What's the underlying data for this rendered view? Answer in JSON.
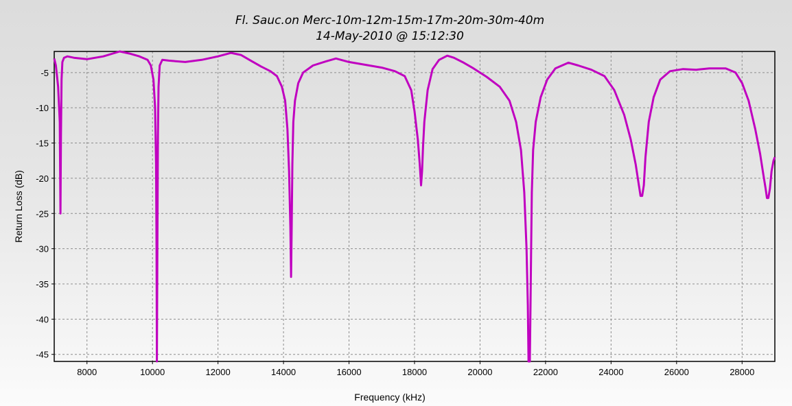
{
  "chart_data": {
    "type": "line",
    "title": "Fl. Sauc.on Merc-10m-12m-15m-17m-20m-30m-40m",
    "subtitle": "14-May-2010 @ 15:12:30",
    "xlabel": "Frequency (kHz)",
    "ylabel": "Return Loss (dB)",
    "xlim": [
      7000,
      29000
    ],
    "ylim": [
      -46,
      -2
    ],
    "xticks": [
      8000,
      10000,
      12000,
      14000,
      16000,
      18000,
      20000,
      22000,
      24000,
      26000,
      28000
    ],
    "yticks": [
      -5,
      -10,
      -15,
      -20,
      -25,
      -30,
      -35,
      -40,
      -45
    ],
    "grid": true,
    "line_color": "#c000c0",
    "series": [
      {
        "x": [
          7000,
          7050,
          7120,
          7170,
          7190,
          7205,
          7225,
          7250,
          7300,
          7400,
          7600,
          8000,
          8500,
          9000,
          9300,
          9600,
          9850,
          9950,
          10030,
          10080,
          10110,
          10125,
          10135,
          10150,
          10165,
          10185,
          10220,
          10300,
          10500,
          11000,
          11500,
          12000,
          12400,
          12700,
          13000,
          13300,
          13600,
          13800,
          13950,
          14050,
          14120,
          14170,
          14210,
          14230,
          14250,
          14270,
          14300,
          14350,
          14450,
          14600,
          14900,
          15300,
          15600,
          16000,
          16500,
          17000,
          17400,
          17700,
          17900,
          18000,
          18100,
          18160,
          18200,
          18230,
          18260,
          18300,
          18400,
          18550,
          18750,
          19000,
          19200,
          19500,
          19800,
          20200,
          20600,
          20900,
          21100,
          21250,
          21350,
          21420,
          21460,
          21480,
          21500,
          21520,
          21540,
          21560,
          21580,
          21620,
          21700,
          21850,
          22050,
          22300,
          22700,
          23000,
          23400,
          23800,
          24100,
          24400,
          24600,
          24750,
          24850,
          24900,
          24950,
          25000,
          25050,
          25150,
          25300,
          25500,
          25800,
          26200,
          26600,
          27000,
          27500,
          27800,
          28000,
          28200,
          28400,
          28550,
          28650,
          28720,
          28760,
          28800,
          28850,
          28900,
          28960,
          29000
        ],
        "y": [
          -3.0,
          -4.0,
          -7.0,
          -12.0,
          -25.0,
          -14.0,
          -6.0,
          -3.5,
          -2.9,
          -2.7,
          -2.9,
          -3.1,
          -2.7,
          -2.0,
          -2.3,
          -2.7,
          -3.2,
          -4.0,
          -6.0,
          -10.0,
          -18.0,
          -30.0,
          -46.0,
          -30.0,
          -14.0,
          -7.0,
          -4.0,
          -3.2,
          -3.3,
          -3.5,
          -3.2,
          -2.7,
          -2.2,
          -2.5,
          -3.3,
          -4.1,
          -4.8,
          -5.5,
          -7.0,
          -9.0,
          -13.0,
          -19.0,
          -27.0,
          -34.0,
          -27.0,
          -18.0,
          -12.0,
          -9.0,
          -6.5,
          -5.0,
          -4.0,
          -3.4,
          -3.0,
          -3.5,
          -3.9,
          -4.3,
          -4.8,
          -5.5,
          -7.5,
          -10.5,
          -14.5,
          -18.0,
          -21.0,
          -19.0,
          -15.5,
          -12.0,
          -7.5,
          -4.5,
          -3.2,
          -2.6,
          -2.9,
          -3.6,
          -4.4,
          -5.6,
          -7.0,
          -9.0,
          -12.0,
          -16.0,
          -22.0,
          -30.0,
          -38.0,
          -46.0,
          -46.0,
          -46.0,
          -38.0,
          -30.0,
          -22.0,
          -16.0,
          -12.0,
          -8.5,
          -6.0,
          -4.4,
          -3.6,
          -4.0,
          -4.6,
          -5.5,
          -7.5,
          -11.0,
          -14.5,
          -18.0,
          -21.0,
          -22.5,
          -22.5,
          -21.0,
          -17.0,
          -12.0,
          -8.5,
          -6.0,
          -4.8,
          -4.5,
          -4.6,
          -4.4,
          -4.4,
          -5.0,
          -6.5,
          -9.0,
          -13.0,
          -16.5,
          -19.5,
          -21.5,
          -22.8,
          -22.8,
          -21.5,
          -19.0,
          -17.5,
          -17.0
        ]
      }
    ]
  }
}
